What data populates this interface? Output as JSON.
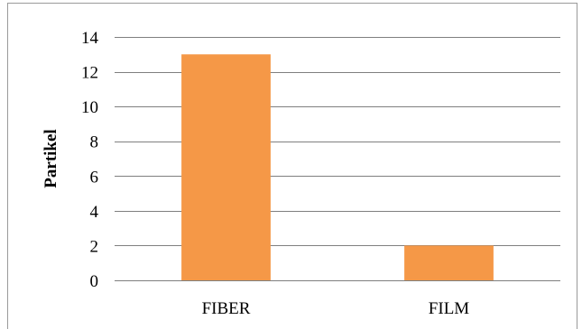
{
  "chart_data": {
    "type": "bar",
    "categories": [
      "FIBER",
      "FILM"
    ],
    "values": [
      13,
      2
    ],
    "title": "",
    "xlabel": "",
    "ylabel": "Partikel",
    "ylim": [
      0,
      14
    ],
    "yticks": [
      0,
      2,
      4,
      6,
      8,
      10,
      12,
      14
    ],
    "grid": true,
    "legend": "none",
    "colors": {
      "bar": "#f59847",
      "grid": "#7f7f7f"
    }
  }
}
